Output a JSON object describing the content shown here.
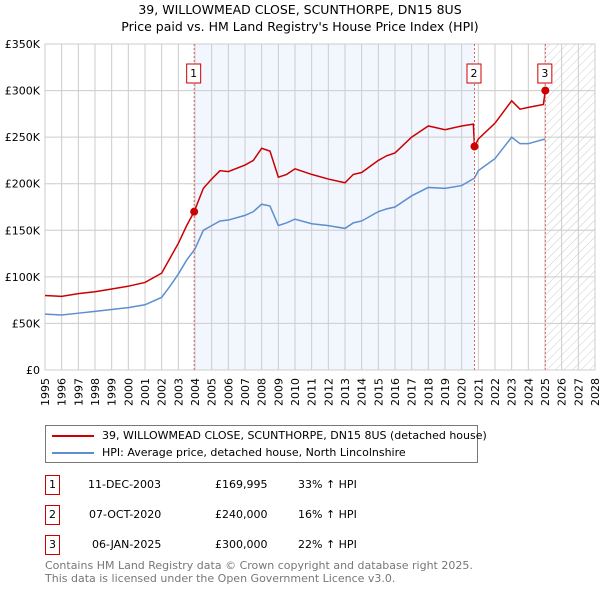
{
  "title_line1": "39, WILLOWMEAD CLOSE, SCUNTHORPE, DN15 8US",
  "title_line2": "Price paid vs. HM Land Registry's House Price Index (HPI)",
  "chart_data": {
    "type": "line",
    "xlim": [
      1995,
      2028
    ],
    "ylim": [
      0,
      350000
    ],
    "x_ticks": [
      "1995",
      "1996",
      "1997",
      "1998",
      "1999",
      "2000",
      "2001",
      "2002",
      "2003",
      "2004",
      "2005",
      "2006",
      "2007",
      "2008",
      "2009",
      "2010",
      "2011",
      "2012",
      "2013",
      "2014",
      "2015",
      "2016",
      "2017",
      "2018",
      "2019",
      "2020",
      "2021",
      "2022",
      "2023",
      "2024",
      "2025",
      "2026",
      "2027",
      "2028"
    ],
    "y_ticks": [
      {
        "v": 0,
        "label": "£0"
      },
      {
        "v": 50000,
        "label": "£50K"
      },
      {
        "v": 100000,
        "label": "£100K"
      },
      {
        "v": 150000,
        "label": "£150K"
      },
      {
        "v": 200000,
        "label": "£200K"
      },
      {
        "v": 250000,
        "label": "£250K"
      },
      {
        "v": 300000,
        "label": "£300K"
      },
      {
        "v": 350000,
        "label": "£350K"
      }
    ],
    "grid": true,
    "shaded_period": [
      2003.95,
      2020.77
    ],
    "forecast_hatch_from": 2025.02,
    "series": [
      {
        "name": "39, WILLOWMEAD CLOSE, SCUNTHORPE, DN15 8US (detached house)",
        "color": "#cc0000",
        "x": [
          1995,
          1996,
          1997,
          1998,
          1999,
          2000,
          2001,
          2002,
          2002.5,
          2003,
          2003.5,
          2003.95,
          2004.5,
          2005,
          2005.5,
          2006,
          2007,
          2007.5,
          2008,
          2008.5,
          2009,
          2009.5,
          2010,
          2011,
          2012,
          2013,
          2013.5,
          2014,
          2015,
          2015.5,
          2016,
          2017,
          2018,
          2019,
          2020,
          2020.7,
          2020.77,
          2021,
          2022,
          2023,
          2023.5,
          2024,
          2024.9,
          2025.02
        ],
        "y": [
          80000,
          79000,
          82000,
          84000,
          87000,
          90000,
          94000,
          104000,
          120000,
          136000,
          155000,
          169995,
          195000,
          205000,
          214000,
          213000,
          220000,
          225000,
          238000,
          235000,
          207000,
          210000,
          216000,
          210000,
          205000,
          201000,
          210000,
          212000,
          225000,
          230000,
          233000,
          250000,
          262000,
          258000,
          262000,
          264000,
          240000,
          248000,
          265000,
          289000,
          280000,
          282000,
          285000,
          300000
        ]
      },
      {
        "name": "HPI: Average price, detached house, North Lincolnshire",
        "color": "#5b8fd0",
        "x": [
          1995,
          1996,
          1997,
          1998,
          1999,
          2000,
          2001,
          2002,
          2002.5,
          2003,
          2003.5,
          2004,
          2004.5,
          2005,
          2005.5,
          2006,
          2007,
          2007.5,
          2008,
          2008.5,
          2009,
          2009.5,
          2010,
          2011,
          2012,
          2013,
          2013.5,
          2014,
          2015,
          2015.5,
          2016,
          2017,
          2018,
          2019,
          2020,
          2020.77,
          2021,
          2022,
          2023,
          2023.5,
          2024,
          2025
        ],
        "y": [
          60000,
          59000,
          61000,
          63000,
          65000,
          67000,
          70000,
          78000,
          90000,
          103000,
          118000,
          130000,
          150000,
          155000,
          160000,
          161000,
          166000,
          170000,
          178000,
          176000,
          155000,
          158000,
          162000,
          157000,
          155000,
          152000,
          158000,
          160000,
          170000,
          173000,
          175000,
          187000,
          196000,
          195000,
          198000,
          206000,
          214000,
          227000,
          250000,
          243000,
          243000,
          248000
        ]
      }
    ],
    "sales": [
      {
        "id": "1",
        "x": 2003.95,
        "y": 169995
      },
      {
        "id": "2",
        "x": 2020.77,
        "y": 240000
      },
      {
        "id": "3",
        "x": 2025.02,
        "y": 300000
      }
    ]
  },
  "legend": {
    "property": "39, WILLOWMEAD CLOSE, SCUNTHORPE, DN15 8US (detached house)",
    "hpi": "HPI: Average price, detached house, North Lincolnshire"
  },
  "transactions": [
    {
      "id": "1",
      "date": "11-DEC-2003",
      "price": "£169,995",
      "hpi": "33% ↑ HPI"
    },
    {
      "id": "2",
      "date": "07-OCT-2020",
      "price": "£240,000",
      "hpi": "16% ↑ HPI"
    },
    {
      "id": "3",
      "date": "06-JAN-2025",
      "price": "£300,000",
      "hpi": "22% ↑ HPI"
    }
  ],
  "footer": {
    "line1": "Contains HM Land Registry data © Crown copyright and database right 2025.",
    "line2": "This data is licensed under the Open Government Licence v3.0."
  }
}
